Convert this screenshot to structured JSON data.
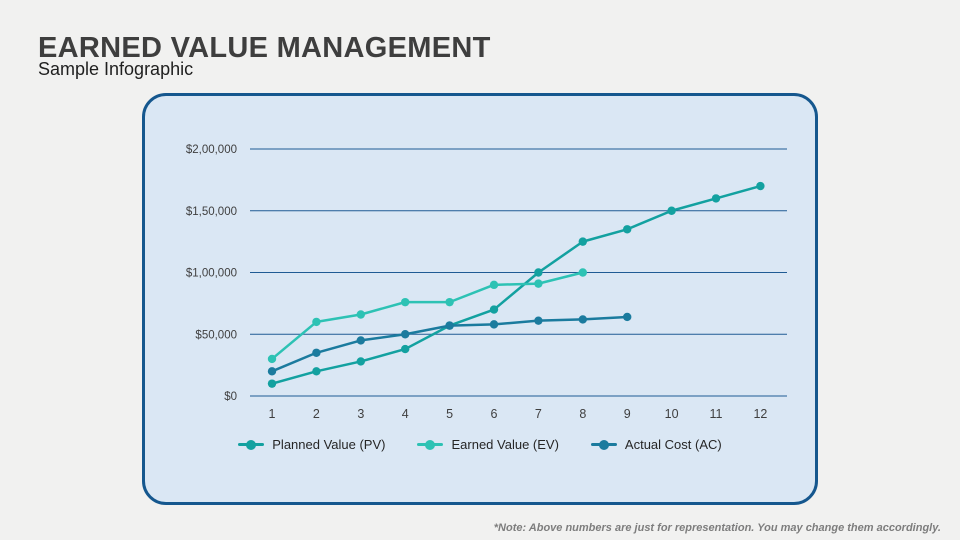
{
  "header": {
    "title": "EARNED VALUE MANAGEMENT",
    "subtitle": "Sample Infographic"
  },
  "footnote": "*Note: Above numbers are just for representation. You may change them accordingly.",
  "colors": {
    "page_background": "#f1f1f0",
    "card_background": "#dae7f4",
    "card_border": "#15578e",
    "grid_line": "#1f5b94",
    "axis_text": "#3f3f3f",
    "title_text": "#3e3e3e",
    "note_text": "#7d7d7d"
  },
  "chart_data": {
    "type": "line",
    "title": "",
    "xlabel": "",
    "ylabel": "",
    "grid": true,
    "legend_position": "bottom",
    "ylim": [
      0,
      200000
    ],
    "x": [
      "1",
      "2",
      "3",
      "4",
      "5",
      "6",
      "7",
      "8",
      "9",
      "10",
      "11",
      "12"
    ],
    "y_ticks": [
      {
        "value": 0,
        "label": "$0"
      },
      {
        "value": 50000,
        "label": "$50,000"
      },
      {
        "value": 100000,
        "label": "$1,00,000"
      },
      {
        "value": 150000,
        "label": "$1,50,000"
      },
      {
        "value": 200000,
        "label": "$2,00,000"
      }
    ],
    "series": [
      {
        "name": "Planned Value (PV)",
        "color": "#13a1a0",
        "values": [
          10000,
          20000,
          28000,
          38000,
          57000,
          70000,
          100000,
          125000,
          135000,
          150000,
          160000,
          170000
        ]
      },
      {
        "name": "Earned Value (EV)",
        "color": "#2dc2b4",
        "values": [
          30000,
          60000,
          66000,
          76000,
          76000,
          90000,
          91000,
          100000,
          null,
          null,
          null,
          null
        ]
      },
      {
        "name": "Actual Cost (AC)",
        "color": "#1b7b9e",
        "values": [
          20000,
          35000,
          45000,
          50000,
          57000,
          58000,
          61000,
          62000,
          64000,
          null,
          null,
          null
        ]
      }
    ]
  }
}
